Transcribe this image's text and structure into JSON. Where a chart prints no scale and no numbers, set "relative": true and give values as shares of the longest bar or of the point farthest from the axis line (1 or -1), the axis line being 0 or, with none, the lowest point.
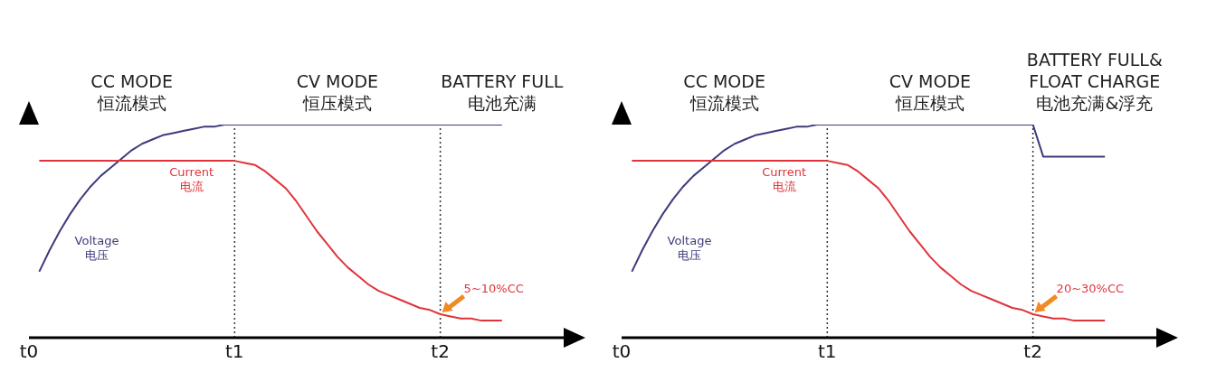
{
  "chart_data": [
    {
      "type": "line",
      "relative": true,
      "marker": "none",
      "categories": [
        "t0",
        null,
        null,
        null,
        null,
        null,
        null,
        null,
        null,
        null,
        null,
        null,
        null,
        null,
        null,
        null,
        null,
        null,
        null,
        null,
        "t1",
        null,
        null,
        null,
        null,
        null,
        null,
        null,
        null,
        null,
        null,
        null,
        null,
        null,
        null,
        null,
        null,
        null,
        null,
        null,
        "t2",
        null,
        null,
        null,
        null,
        null,
        null,
        null,
        null,
        null,
        null,
        null,
        null
      ],
      "series": [
        {
          "name": "Voltage\n电压",
          "color": "#3d3b7c",
          "values": [
            null,
            0.31,
            0.41,
            0.5,
            0.58,
            0.65,
            0.71,
            0.76,
            0.8,
            0.84,
            0.88,
            0.91,
            0.93,
            0.95,
            0.96,
            0.97,
            0.98,
            0.99,
            0.99,
            1,
            1,
            1,
            1,
            1,
            1,
            1,
            1,
            1,
            1,
            1,
            1,
            1,
            1,
            1,
            1,
            1,
            1,
            1,
            1,
            1,
            1,
            1,
            1,
            1,
            1,
            1,
            1,
            null,
            null,
            null,
            null,
            null,
            null
          ]
        },
        {
          "name": "Current\n电流",
          "color": "#e0343a",
          "values": [
            null,
            0.83,
            0.83,
            0.83,
            0.83,
            0.83,
            0.83,
            0.83,
            0.83,
            0.83,
            0.83,
            0.83,
            0.83,
            0.83,
            0.83,
            0.83,
            0.83,
            0.83,
            0.83,
            0.83,
            0.83,
            0.82,
            0.81,
            0.78,
            0.74,
            0.7,
            0.64,
            0.57,
            0.5,
            0.44,
            0.38,
            0.33,
            0.29,
            0.25,
            0.22,
            0.2,
            0.18,
            0.16,
            0.14,
            0.13,
            0.11,
            0.1,
            0.09,
            0.09,
            0.08,
            0.08,
            0.08,
            null,
            null,
            null,
            null,
            null,
            null
          ]
        }
      ],
      "ref_lines": [
        {
          "axis": "x",
          "value": "t1",
          "color": "#333333",
          "line_style": "dotted"
        },
        {
          "axis": "x",
          "value": "t2",
          "color": "#333333",
          "line_style": "dotted"
        }
      ],
      "annotations": [
        "CC MODE\n恒流模式",
        "CV MODE\n恒压模式",
        "BATTERY FULL\n电池充满",
        {
          "text": "5~10%CC",
          "x": "t2",
          "y": 0.11
        }
      ]
    },
    {
      "type": "line",
      "relative": true,
      "marker": "none",
      "categories": [
        "t0",
        null,
        null,
        null,
        null,
        null,
        null,
        null,
        null,
        null,
        null,
        null,
        null,
        null,
        null,
        null,
        null,
        null,
        null,
        null,
        "t1",
        null,
        null,
        null,
        null,
        null,
        null,
        null,
        null,
        null,
        null,
        null,
        null,
        null,
        null,
        null,
        null,
        null,
        null,
        null,
        "t2",
        null,
        null,
        null,
        null,
        null,
        null,
        null,
        null,
        null,
        null,
        null,
        null
      ],
      "series": [
        {
          "name": "Voltage\n电压",
          "color": "#3d3b7c",
          "values": [
            null,
            0.31,
            0.41,
            0.5,
            0.58,
            0.65,
            0.71,
            0.76,
            0.8,
            0.84,
            0.88,
            0.91,
            0.93,
            0.95,
            0.96,
            0.97,
            0.98,
            0.99,
            0.99,
            1,
            1,
            1,
            1,
            1,
            1,
            1,
            1,
            1,
            1,
            1,
            1,
            1,
            1,
            1,
            1,
            1,
            1,
            1,
            1,
            1,
            1,
            0.85,
            0.85,
            0.85,
            0.85,
            0.85,
            0.85,
            0.85,
            null,
            null,
            null,
            null,
            null
          ]
        },
        {
          "name": "Current\n电流",
          "color": "#e0343a",
          "values": [
            null,
            0.83,
            0.83,
            0.83,
            0.83,
            0.83,
            0.83,
            0.83,
            0.83,
            0.83,
            0.83,
            0.83,
            0.83,
            0.83,
            0.83,
            0.83,
            0.83,
            0.83,
            0.83,
            0.83,
            0.83,
            0.82,
            0.81,
            0.78,
            0.74,
            0.7,
            0.64,
            0.57,
            0.5,
            0.44,
            0.38,
            0.33,
            0.29,
            0.25,
            0.22,
            0.2,
            0.18,
            0.16,
            0.14,
            0.13,
            0.11,
            0.1,
            0.09,
            0.09,
            0.08,
            0.08,
            0.08,
            0.08,
            null,
            null,
            null,
            null,
            null
          ]
        }
      ],
      "ref_lines": [
        {
          "axis": "x",
          "value": "t1",
          "color": "#333333",
          "line_style": "dotted"
        },
        {
          "axis": "x",
          "value": "t2",
          "color": "#333333",
          "line_style": "dotted"
        }
      ],
      "annotations": [
        "CC MODE\n恒流模式",
        "CV MODE\n恒压模式",
        "BATTERY FULL&\nFLOAT CHARGE\n电池充满&浮充",
        {
          "text": "20~30%CC",
          "x": "t2",
          "y": 0.11
        }
      ]
    }
  ]
}
